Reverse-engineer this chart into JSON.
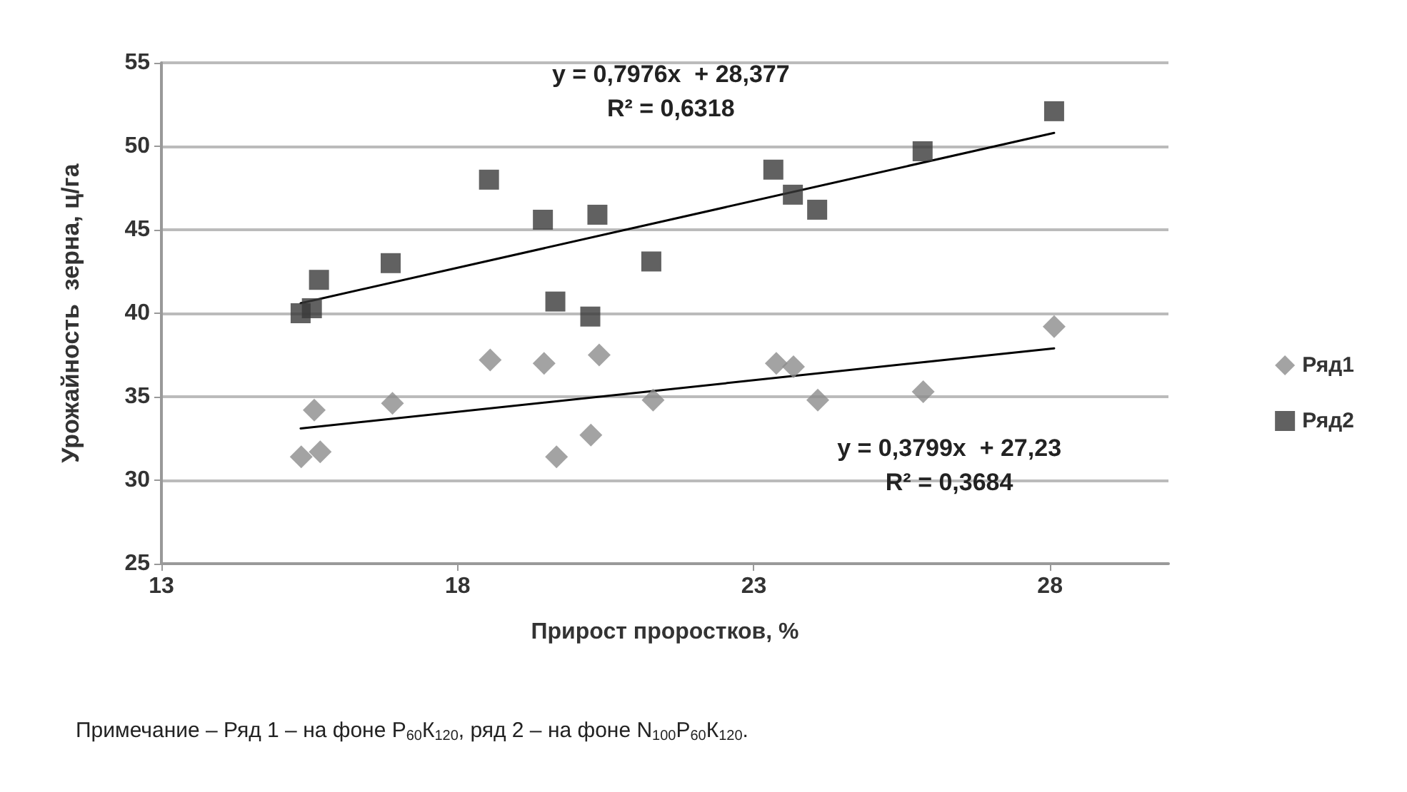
{
  "chart_data": {
    "type": "scatter",
    "xlabel": "Прирост проростков, %",
    "ylabel": "Урожайность  зерна, ц/га",
    "xlim": [
      13,
      30
    ],
    "xticks": [
      13,
      18,
      23,
      28
    ],
    "ylim": [
      25,
      55
    ],
    "yticks": [
      25,
      30,
      35,
      40,
      45,
      50,
      55
    ],
    "grid": "y",
    "legend": "right",
    "series": [
      {
        "name": "Ряд1",
        "color": "#8c8c8c",
        "marker": "diamond",
        "x": [
          15.36,
          15.58,
          15.68,
          16.9,
          18.55,
          19.46,
          19.67,
          20.25,
          20.39,
          21.3,
          23.38,
          23.67,
          24.08,
          25.86,
          28.07
        ],
        "values": [
          31.4,
          34.2,
          31.7,
          34.6,
          37.2,
          37,
          31.4,
          32.7,
          37.5,
          34.8,
          37,
          36.8,
          34.8,
          35.3,
          39.2
        ]
      },
      {
        "name": "Ряд2",
        "color": "#3a3a3a",
        "marker": "square",
        "x": [
          15.35,
          15.54,
          15.66,
          16.87,
          18.53,
          19.44,
          19.65,
          20.24,
          20.36,
          21.27,
          23.33,
          23.66,
          24.07,
          25.85,
          28.07
        ],
        "values": [
          40,
          40.3,
          42,
          43,
          48,
          45.6,
          40.7,
          39.8,
          45.9,
          43.1,
          48.6,
          47.1,
          46.2,
          49.7,
          52.1
        ]
      },
      {
        "type": "line",
        "color": "#000000",
        "marker": "none",
        "x": [
          15.35,
          28.07
        ],
        "values": [
          33.1,
          37.9
        ]
      },
      {
        "type": "line",
        "color": "#000000",
        "marker": "none",
        "x": [
          15.35,
          28.07
        ],
        "values": [
          40.6,
          50.8
        ]
      }
    ],
    "annotations": [
      "y = 0,7976x  + 28,377\nR² = 0,6318",
      "y = 0,3799x  + 27,23\nR² = 0,3684",
      "Примечание – Ряд 1 – на фоне Р$_{60}$К$_{120}$, ряд 2 – на фоне N$_{100}$Р$_{60}$К$_{120}$."
    ]
  }
}
